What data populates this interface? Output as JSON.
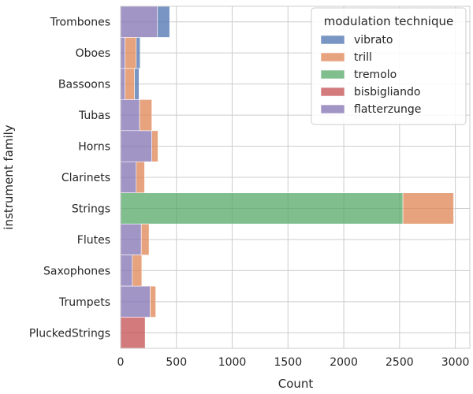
{
  "chart_data": {
    "type": "bar",
    "orientation": "horizontal",
    "stacked": true,
    "title": "",
    "xlabel": "Count",
    "ylabel": "instrument family",
    "xlim": [
      0,
      3130
    ],
    "xticks": [
      0,
      500,
      1000,
      1500,
      2000,
      2500,
      3000
    ],
    "grid": true,
    "categories": [
      "Trombones",
      "Oboes",
      "Bassoons",
      "Tubas",
      "Horns",
      "Clarinets",
      "Strings",
      "Flutes",
      "Saxophones",
      "Trumpets",
      "PluckedStrings"
    ],
    "legend": {
      "title": "modulation technique",
      "position": "top-right",
      "entries": [
        "vibrato",
        "trill",
        "tremolo",
        "bisbigliando",
        "flatterzunge"
      ]
    },
    "series": [
      {
        "name": "flatterzunge",
        "color": "#8172b3",
        "values": [
          330,
          40,
          40,
          170,
          280,
          140,
          0,
          185,
          105,
          265,
          0
        ]
      },
      {
        "name": "bisbigliando",
        "color": "#c44e52",
        "values": [
          0,
          0,
          0,
          0,
          0,
          0,
          0,
          0,
          0,
          0,
          220
        ]
      },
      {
        "name": "tremolo",
        "color": "#55a868",
        "values": [
          0,
          0,
          0,
          0,
          0,
          0,
          2530,
          0,
          0,
          0,
          0
        ]
      },
      {
        "name": "trill",
        "color": "#dd8452",
        "values": [
          0,
          100,
          85,
          110,
          55,
          75,
          455,
          70,
          85,
          50,
          0
        ]
      },
      {
        "name": "vibrato",
        "color": "#4c72b0",
        "values": [
          110,
          35,
          40,
          0,
          0,
          0,
          0,
          0,
          0,
          0,
          0
        ]
      }
    ]
  }
}
